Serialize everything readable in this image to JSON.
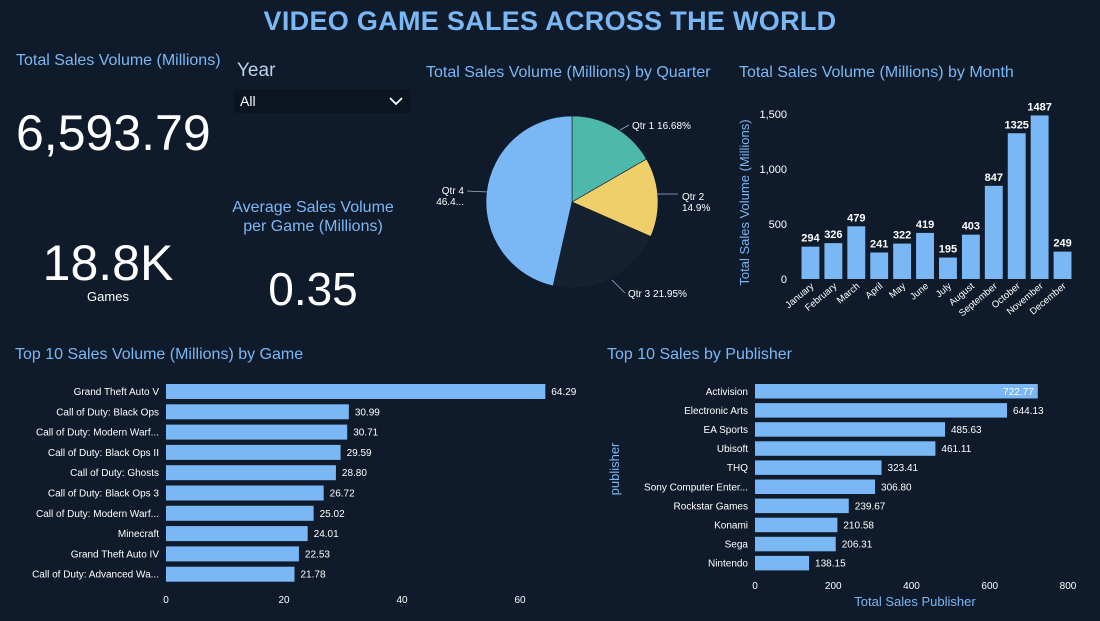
{
  "title": "VIDEO GAME SALES ACROSS THE WORLD",
  "kpi_total": {
    "label": "Total Sales Volume (Millions)",
    "value": "6,593.79"
  },
  "kpi_games": {
    "value": "18.8K",
    "label": "Games"
  },
  "kpi_avg": {
    "label_line1": "Average Sales Volume",
    "label_line2": "per Game (Millions)",
    "value": "0.35"
  },
  "filter": {
    "label": "Year",
    "selected": "All",
    "icon": "chevron-down-icon"
  },
  "colors": {
    "background": "#0f1a2a",
    "accent": "#7ab8f5",
    "bar": "#7ab8f5",
    "pie": [
      "#4db8ac",
      "#efcf6a",
      "#152131",
      "#7ab8f5"
    ]
  },
  "chart_data": [
    {
      "id": "quarter",
      "type": "pie",
      "title": "Total Sales Volume (Millions) by Quarter",
      "slices": [
        {
          "label": "Qtr 1",
          "pct_label": "16.68%",
          "value": 16.68
        },
        {
          "label": "Qtr 2",
          "pct_label": "14.9%",
          "value": 14.9
        },
        {
          "label": "Qtr 3",
          "pct_label": "21.95%",
          "value": 21.95
        },
        {
          "label": "Qtr 4",
          "pct_label": "46.4...",
          "value": 46.47
        }
      ]
    },
    {
      "id": "month",
      "type": "bar",
      "title": "Total Sales Volume (Millions) by Month",
      "ylabel": "Total Sales Volume (Millions)",
      "ylim": [
        0,
        1500
      ],
      "yticks": [
        0,
        500,
        1000,
        1500
      ],
      "ytick_labels": [
        "0",
        "500",
        "1,000",
        "1,500"
      ],
      "categories": [
        "January",
        "February",
        "March",
        "April",
        "May",
        "June",
        "July",
        "August",
        "September",
        "October",
        "November",
        "December"
      ],
      "values": [
        294,
        326,
        479,
        241,
        322,
        419,
        195,
        403,
        847,
        1325,
        1487,
        249
      ]
    },
    {
      "id": "games",
      "type": "bar",
      "orientation": "horizontal",
      "title": "Top 10 Sales Volume (Millions) by Game",
      "xlim": [
        0,
        70
      ],
      "xticks": [
        0,
        20,
        40,
        60
      ],
      "categories": [
        "Grand Theft Auto V",
        "Call of Duty: Black Ops",
        "Call of Duty: Modern Warf...",
        "Call of Duty: Black Ops II",
        "Call of Duty: Ghosts",
        "Call of Duty: Black Ops 3",
        "Call of Duty: Modern Warf...",
        "Minecraft",
        "Grand Theft Auto IV",
        "Call of Duty: Advanced Wa..."
      ],
      "values": [
        64.29,
        30.99,
        30.71,
        29.59,
        28.8,
        26.72,
        25.02,
        24.01,
        22.53,
        21.78
      ],
      "value_labels": [
        "64.29",
        "30.99",
        "30.71",
        "29.59",
        "28.80",
        "26.72",
        "25.02",
        "24.01",
        "22.53",
        "21.78"
      ]
    },
    {
      "id": "publisher",
      "type": "bar",
      "orientation": "horizontal",
      "title": "Top 10 Sales by Publisher",
      "xlabel": "Total Sales Publisher",
      "ylabel": "publisher",
      "xlim": [
        0,
        800
      ],
      "xticks": [
        0,
        200,
        400,
        600,
        800
      ],
      "categories": [
        "Activision",
        "Electronic Arts",
        "EA Sports",
        "Ubisoft",
        "THQ",
        "Sony Computer Enter...",
        "Rockstar Games",
        "Konami",
        "Sega",
        "Nintendo"
      ],
      "values": [
        722.77,
        644.13,
        485.63,
        461.11,
        323.41,
        306.8,
        239.67,
        210.58,
        206.31,
        138.15
      ],
      "value_labels": [
        "722.77",
        "644.13",
        "485.63",
        "461.11",
        "323.41",
        "306.80",
        "239.67",
        "210.58",
        "206.31",
        "138.15"
      ]
    }
  ]
}
